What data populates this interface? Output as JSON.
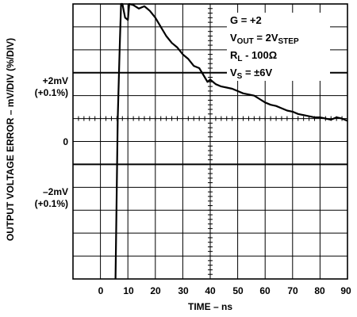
{
  "chart_data": {
    "type": "line",
    "xlabel": "TIME – ns",
    "ylabel": "OUTPUT VOLTAGE ERROR – mV/DIV (%/DIV)",
    "x_ticks": [
      "0",
      "10",
      "20",
      "30",
      "40",
      "50",
      "60",
      "70",
      "80",
      "90"
    ],
    "xlim": [
      -10,
      90
    ],
    "y_units": "mV",
    "ylim": [
      -7,
      5
    ],
    "y_tick_labels": [
      {
        "value": 2,
        "line1": "+2mV",
        "line2": "(+0.1%)"
      },
      {
        "value": 0,
        "line1": "0",
        "line2": ""
      },
      {
        "value": -2,
        "line1": "–2mV",
        "line2": "(+0.1%)"
      }
    ],
    "grid": true,
    "series": [
      {
        "x": [
          5.5,
          6.3,
          7.0,
          7.5,
          8.0,
          9.0,
          10.0,
          10.5,
          12,
          14,
          16,
          18,
          20,
          22,
          24,
          26,
          28,
          30,
          32,
          34,
          36,
          38,
          39,
          40,
          42,
          44,
          46,
          48,
          50,
          52,
          54,
          56,
          58,
          60,
          62,
          64,
          66,
          68,
          70,
          72,
          74,
          76,
          78,
          80,
          82,
          84,
          86,
          88,
          90
        ],
        "y": [
          -7.0,
          0.0,
          3.0,
          5.0,
          5.0,
          4.4,
          4.3,
          5.0,
          4.95,
          4.8,
          4.9,
          4.7,
          4.4,
          4.0,
          3.6,
          3.3,
          3.1,
          2.8,
          2.6,
          2.3,
          2.2,
          1.8,
          1.6,
          1.7,
          1.5,
          1.4,
          1.35,
          1.3,
          1.2,
          1.1,
          1.05,
          1.0,
          0.85,
          0.7,
          0.6,
          0.55,
          0.45,
          0.35,
          0.3,
          0.2,
          0.15,
          0.1,
          0.05,
          0.05,
          0.0,
          -0.05,
          0.05,
          0.0,
          -0.1
        ]
      }
    ],
    "annotations": [
      {
        "main": "G = +2",
        "sub": "",
        "tail": ""
      },
      {
        "main": "V",
        "sub": "OUT",
        "tail": " = 2V",
        "sub2": "STEP"
      },
      {
        "main": "R",
        "sub": "L",
        "tail": " - 100Ω"
      },
      {
        "main": "V",
        "sub": "S",
        "tail": " = ±6V"
      }
    ]
  }
}
